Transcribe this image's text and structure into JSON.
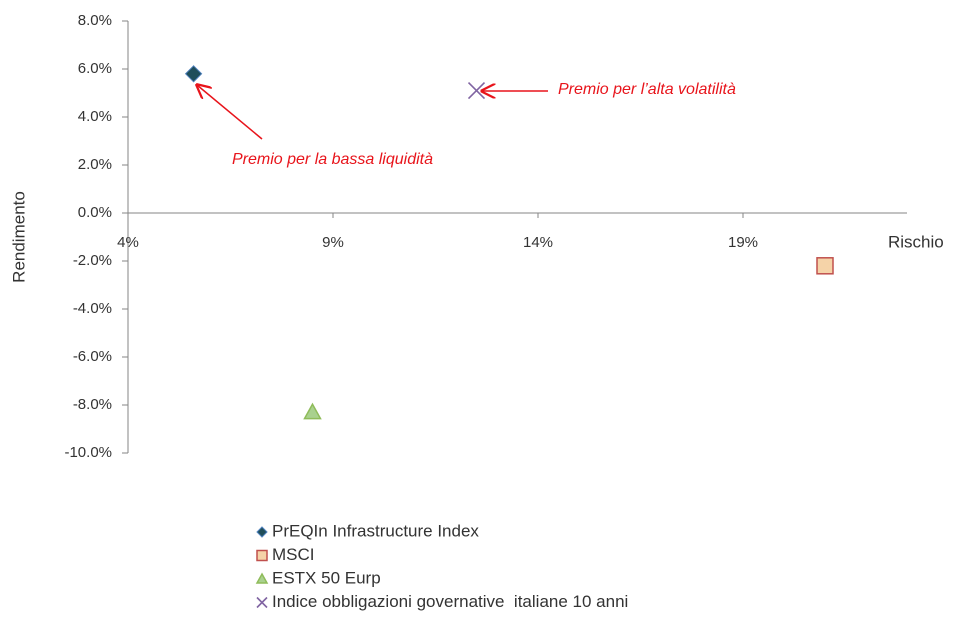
{
  "chart_data": {
    "type": "scatter",
    "y_label": "Rendimento",
    "x_label": "Rischio",
    "xlim": [
      4,
      23
    ],
    "xticks": [
      {
        "value": 4,
        "label": "4%"
      },
      {
        "value": 9,
        "label": "9%"
      },
      {
        "value": 14,
        "label": "14%"
      },
      {
        "value": 19,
        "label": "19%"
      }
    ],
    "ylim": [
      -10,
      8
    ],
    "yticks": [
      {
        "value": 8,
        "label": "8.0%"
      },
      {
        "value": 6,
        "label": "6.0%"
      },
      {
        "value": 4,
        "label": "4.0%"
      },
      {
        "value": 2,
        "label": "2.0%"
      },
      {
        "value": 0,
        "label": "0.0%"
      },
      {
        "value": -2,
        "label": "-2.0%"
      },
      {
        "value": -4,
        "label": "-4.0%"
      },
      {
        "value": -6,
        "label": "-6.0%"
      },
      {
        "value": -8,
        "label": "-8.0%"
      },
      {
        "value": -10,
        "label": "-10.0%"
      }
    ],
    "grid": false,
    "legend": "bottom",
    "series": [
      {
        "name": "PrEQIn Infrastructure Index",
        "color": "#1f4e5a",
        "marker": "diamond",
        "x": [
          5.6
        ],
        "values": [
          5.8
        ]
      },
      {
        "name": "MSCI",
        "color": "#f5d3a8",
        "marker": "square",
        "x": [
          21.0
        ],
        "values": [
          -2.2
        ]
      },
      {
        "name": "ESTX 50 Eurp",
        "color": "#a9d18e",
        "marker": "triangle",
        "x": [
          8.5
        ],
        "values": [
          -8.3
        ]
      },
      {
        "name": "Indice obbligazioni governative  italiane 10 anni",
        "color": "#8064a2",
        "marker": "x",
        "x": [
          12.5
        ],
        "values": [
          5.1
        ]
      }
    ],
    "annotations": [
      "Premio per la bassa liquidità",
      "Premio per l’alta volatilità"
    ]
  }
}
